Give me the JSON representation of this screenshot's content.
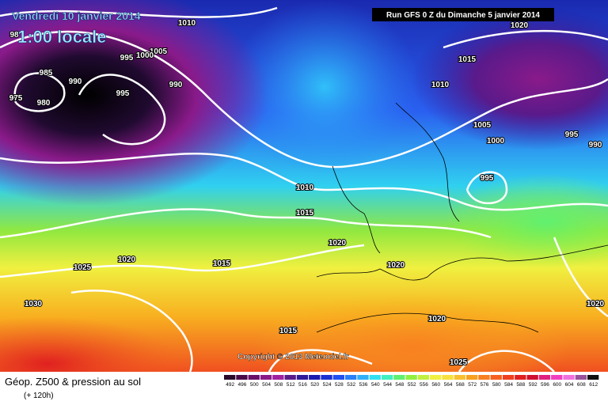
{
  "header": {
    "title": "Vendredi 10 janvier 2014",
    "time": "1:00 locale",
    "run": "Run GFS 0 Z du Dimanche 5 janvier 2014"
  },
  "copyright": "Copyright © 2013 Meteociel.fr",
  "footer": {
    "title": "Géop. Z500 & pression au sol",
    "lead": "(+ 120h)"
  },
  "isobar_labels": [
    1010,
    1005,
    1000,
    995,
    990,
    995,
    98,
    985,
    990,
    980,
    975,
    1020,
    1015,
    1010,
    1005,
    1000,
    995,
    990,
    995,
    1010,
    1015,
    1020,
    1020,
    1015,
    1020,
    1025,
    1030,
    1020,
    1015,
    1025,
    1020
  ],
  "scale": {
    "labels": [
      492,
      496,
      500,
      504,
      508,
      512,
      516,
      520,
      524,
      528,
      532,
      536,
      540,
      544,
      548,
      552,
      556,
      560,
      564,
      568,
      572,
      576,
      580,
      584,
      588,
      592,
      596,
      600,
      604,
      608,
      612
    ],
    "colors": [
      "#2a0a2a",
      "#4a0a4a",
      "#6a106a",
      "#8a1a8a",
      "#a020a0",
      "#5a1a8a",
      "#301a9a",
      "#1a1ab0",
      "#1a30d0",
      "#2050f0",
      "#2a80f8",
      "#30b0f8",
      "#30e0f0",
      "#40f0c0",
      "#60f070",
      "#90f040",
      "#c0f040",
      "#f0f040",
      "#f8e040",
      "#f8c030",
      "#f8a020",
      "#f88020",
      "#f86020",
      "#f04020",
      "#e02020",
      "#d01030",
      "#e02080",
      "#f040c0",
      "#f070e0",
      "#9a509a",
      "#101010"
    ]
  }
}
